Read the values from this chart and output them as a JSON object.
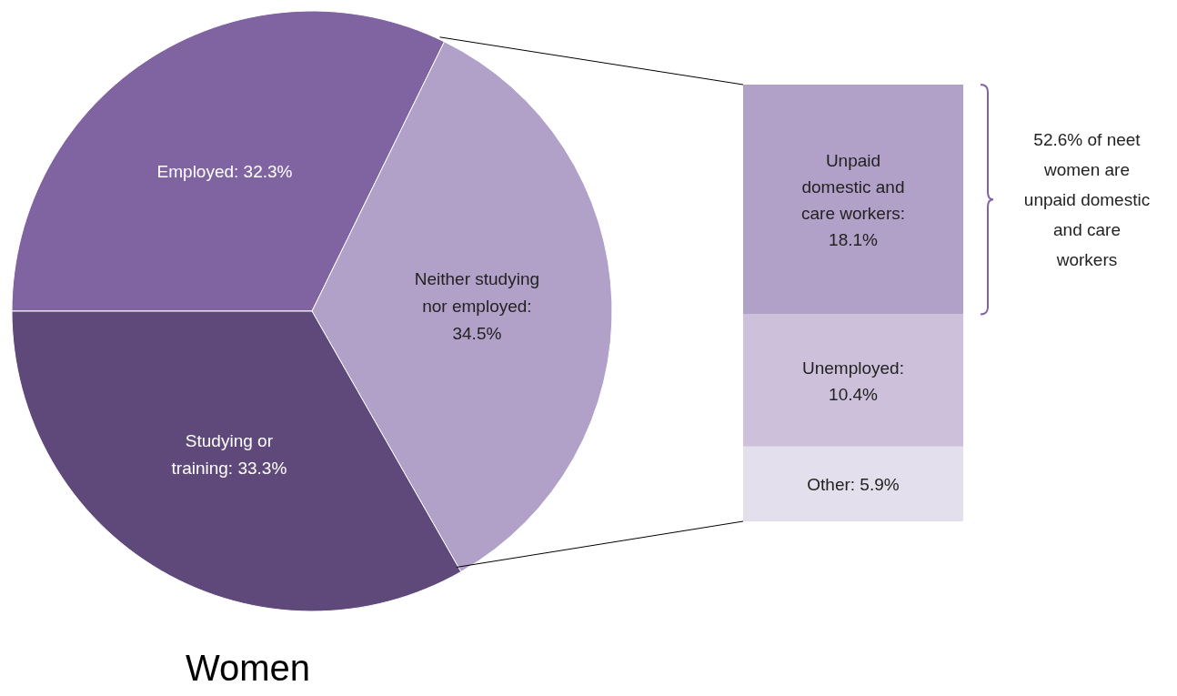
{
  "chart_data": [
    {
      "type": "pie",
      "title": "Women",
      "categories": [
        "Employed: 32.3%",
        "Neither studying nor employed: 34.5%",
        "Studying or training: 33.3%"
      ],
      "values": [
        32.3,
        34.5,
        33.3
      ],
      "colors": [
        "#8064a2",
        "#b1a0c7",
        "#5f497a"
      ]
    },
    {
      "type": "bar",
      "stacked": true,
      "categories": [
        null
      ],
      "series": [
        {
          "color": "#e4dfec",
          "values": [
            5.9
          ],
          "value_labels": [
            "Other: 5.9%"
          ]
        },
        {
          "color": "#ccc0da",
          "values": [
            10.4
          ],
          "value_labels": [
            "Unemployed: 10.4%"
          ]
        },
        {
          "color": "#b1a0c7",
          "values": [
            18.1
          ],
          "value_labels": [
            "Unpaid domestic and care workers: 18.1%"
          ]
        }
      ],
      "annotations": [
        "52.6% of neet women are unpaid domestic and care workers"
      ]
    }
  ]
}
